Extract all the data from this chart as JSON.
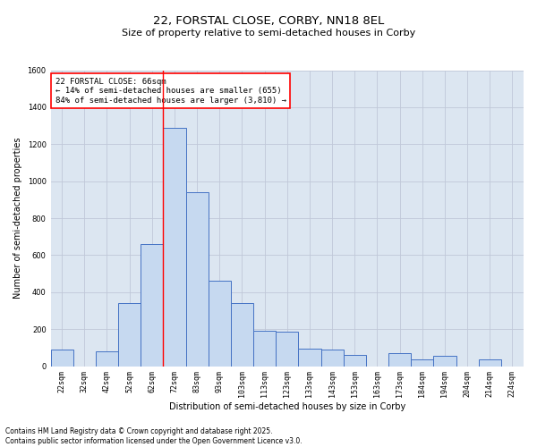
{
  "title": "22, FORSTAL CLOSE, CORBY, NN18 8EL",
  "subtitle": "Size of property relative to semi-detached houses in Corby",
  "xlabel": "Distribution of semi-detached houses by size in Corby",
  "ylabel": "Number of semi-detached properties",
  "categories": [
    "22sqm",
    "32sqm",
    "42sqm",
    "52sqm",
    "62sqm",
    "72sqm",
    "83sqm",
    "93sqm",
    "103sqm",
    "113sqm",
    "123sqm",
    "133sqm",
    "143sqm",
    "153sqm",
    "163sqm",
    "173sqm",
    "184sqm",
    "194sqm",
    "204sqm",
    "214sqm",
    "224sqm"
  ],
  "values": [
    90,
    0,
    80,
    340,
    660,
    1290,
    940,
    460,
    340,
    190,
    185,
    95,
    90,
    60,
    0,
    70,
    35,
    55,
    0,
    35,
    0
  ],
  "bar_color": "#c6d9f0",
  "bar_edge_color": "#4472c4",
  "grid_color": "#c0c8d8",
  "background_color": "#dce6f1",
  "vline_x": 4.5,
  "vline_color": "red",
  "annotation_text": "22 FORSTAL CLOSE: 66sqm\n← 14% of semi-detached houses are smaller (655)\n84% of semi-detached houses are larger (3,810) →",
  "annotation_box_color": "white",
  "annotation_box_edge_color": "red",
  "ylim": [
    0,
    1600
  ],
  "yticks": [
    0,
    200,
    400,
    600,
    800,
    1000,
    1200,
    1400,
    1600
  ],
  "footer_text": "Contains HM Land Registry data © Crown copyright and database right 2025.\nContains public sector information licensed under the Open Government Licence v3.0.",
  "title_fontsize": 9.5,
  "subtitle_fontsize": 8,
  "axis_label_fontsize": 7,
  "tick_fontsize": 6,
  "annotation_fontsize": 6.5,
  "footer_fontsize": 5.5
}
